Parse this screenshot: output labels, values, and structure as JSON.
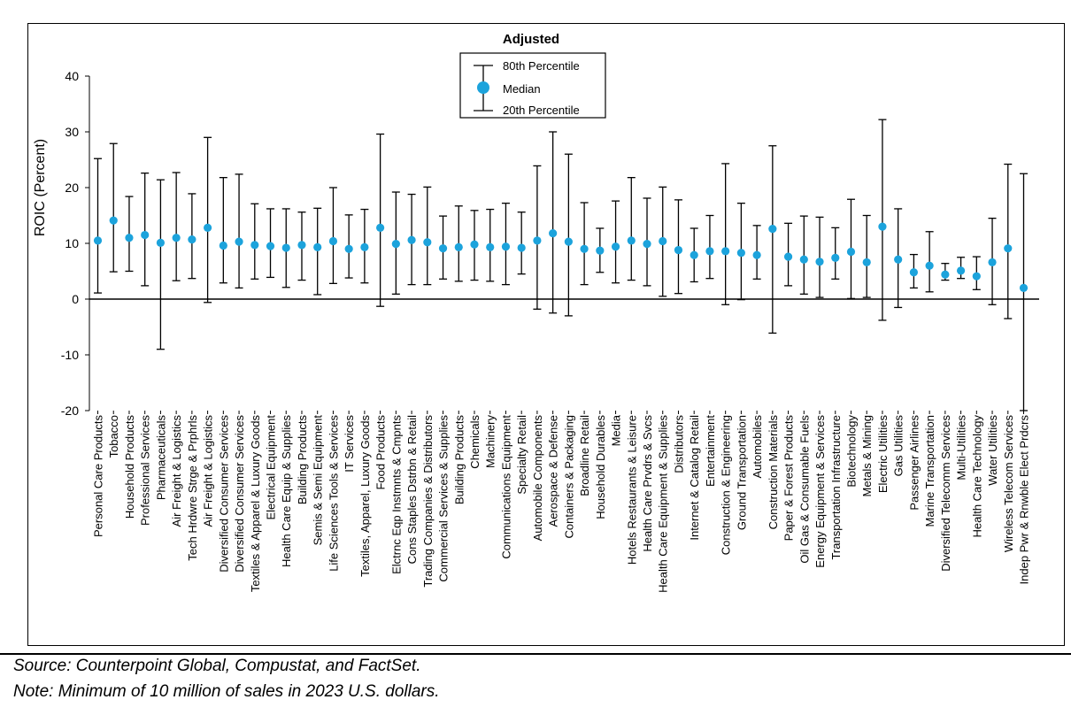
{
  "chart_data": {
    "type": "errorbar",
    "title": "Adjusted",
    "ylabel": "ROIC (Percent)",
    "xlabel": "",
    "ylim": [
      -20,
      40
    ],
    "yticks": [
      -20,
      -10,
      0,
      10,
      20,
      30,
      40
    ],
    "ytick_labels": [
      "-20",
      "-10",
      "0",
      "10",
      "20",
      "30",
      "40"
    ],
    "legend": {
      "position": "top-center",
      "entries": [
        "80th Percentile",
        "Median",
        "20th Percentile"
      ]
    },
    "marker_color": "#1CA3DC",
    "categories": [
      "Personal Care Products",
      "Tobacco",
      "Household Products",
      "Professional Services",
      "Pharmaceuticals",
      "Air Freight & Logistics",
      "Tech Hrdwre Strge & Prphrls",
      "Air Freight & Logistics",
      "Diversified Consumer Services",
      "Diversified Consumer Services",
      "Textiles & Apparel & Luxury Goods",
      "Electrical Equipment",
      "Health Care Equip & Supplies",
      "Building Products",
      "Semis & Semi Equipment",
      "Life Sciences Tools & Services",
      "IT Services",
      "Textiles, Apparel, Luxury Goods",
      "Food Products",
      "Elctrnc Eqp Instmnts & Cmpnts",
      "Cons Staples Dstrbn & Retail",
      "Trading Companies & Distributors",
      "Commercial Services & Supplies",
      "Building Products",
      "Chemicals",
      "Machinery",
      "Communications Equipment",
      "Specialty Retail",
      "Automobile Components",
      "Aerospace & Defense",
      "Containers & Packaging",
      "Broadline Retail",
      "Household Durables",
      "Media",
      "Hotels Restaurants & Leisure",
      "Health Care Prvdrs & Svcs",
      "Health Care Equipment & Supplies",
      "Distributors",
      "Internet & Catalog Retail",
      "Entertainment",
      "Construction & Engineering",
      "Ground Transportation",
      "Automobiles",
      "Construction Materials",
      "Paper & Forest Products",
      "Oil Gas & Consumable Fuels",
      "Energy Equipment & Services",
      "Transportation Infrastructure",
      "Biotechnology",
      "Metals & Mining",
      "Electric Utilities",
      "Gas Utilities",
      "Passenger Airlines",
      "Marine Transportation",
      "Diversified Telecomm Services",
      "Multi-Utilities",
      "Health Care Technology",
      "Water Utilities",
      "Wireless Telecom Services",
      "Indep Pwr & Rnwble Elect Prdcrs"
    ],
    "series": [
      {
        "name": "Median",
        "values": [
          10.5,
          14.1,
          11.0,
          11.5,
          10.1,
          11.0,
          10.7,
          12.8,
          9.6,
          10.3,
          9.7,
          9.5,
          9.2,
          9.7,
          9.3,
          10.4,
          9.0,
          9.3,
          12.8,
          9.9,
          10.6,
          10.2,
          9.1,
          9.3,
          9.8,
          9.3,
          9.4,
          9.2,
          10.5,
          11.8,
          10.3,
          9.0,
          8.7,
          9.4,
          10.5,
          9.9,
          10.4,
          8.8,
          7.9,
          8.6,
          8.6,
          8.3,
          7.9,
          12.6,
          7.6,
          7.1,
          6.7,
          7.4,
          8.5,
          6.6,
          13.0,
          7.1,
          4.8,
          6.0,
          4.4,
          5.1,
          4.1,
          6.6,
          9.1,
          2.0
        ]
      },
      {
        "name": "80th Percentile",
        "values": [
          25.2,
          27.9,
          18.4,
          22.6,
          21.4,
          22.7,
          18.9,
          29.0,
          21.8,
          22.4,
          17.1,
          16.2,
          16.2,
          15.6,
          16.3,
          20.0,
          15.1,
          16.1,
          29.6,
          19.2,
          18.8,
          20.1,
          14.9,
          16.7,
          15.9,
          16.1,
          17.2,
          15.6,
          23.9,
          30.0,
          26.0,
          17.3,
          12.7,
          17.6,
          21.8,
          18.1,
          20.1,
          17.8,
          12.7,
          15.0,
          24.3,
          17.2,
          13.2,
          27.5,
          13.6,
          14.9,
          14.7,
          12.8,
          17.9,
          15.0,
          32.2,
          16.2,
          8.0,
          12.1,
          6.4,
          7.5,
          7.6,
          14.5,
          24.2,
          22.5
        ]
      },
      {
        "name": "20th Percentile",
        "values": [
          1.1,
          4.9,
          5.0,
          2.4,
          -9.0,
          3.3,
          3.7,
          -0.6,
          2.9,
          2.0,
          3.6,
          3.9,
          2.1,
          3.4,
          0.8,
          2.8,
          3.8,
          2.9,
          -1.3,
          0.9,
          2.6,
          2.6,
          3.6,
          3.2,
          3.4,
          3.2,
          2.6,
          4.5,
          -1.8,
          -2.5,
          -3.0,
          2.6,
          4.8,
          2.9,
          3.4,
          2.4,
          0.5,
          1.0,
          3.1,
          3.7,
          -1.0,
          -0.1,
          3.6,
          -6.1,
          2.4,
          0.9,
          0.3,
          3.6,
          0.1,
          0.3,
          -3.8,
          -1.5,
          2.0,
          1.3,
          3.4,
          3.7,
          1.7,
          -1.0,
          -3.5,
          -20.0
        ]
      }
    ]
  },
  "notes": {
    "source": "Source: Counterpoint Global, Compustat, and FactSet.",
    "minimum": "Note: Minimum of 10 million of sales in 2023 U.S. dollars."
  }
}
